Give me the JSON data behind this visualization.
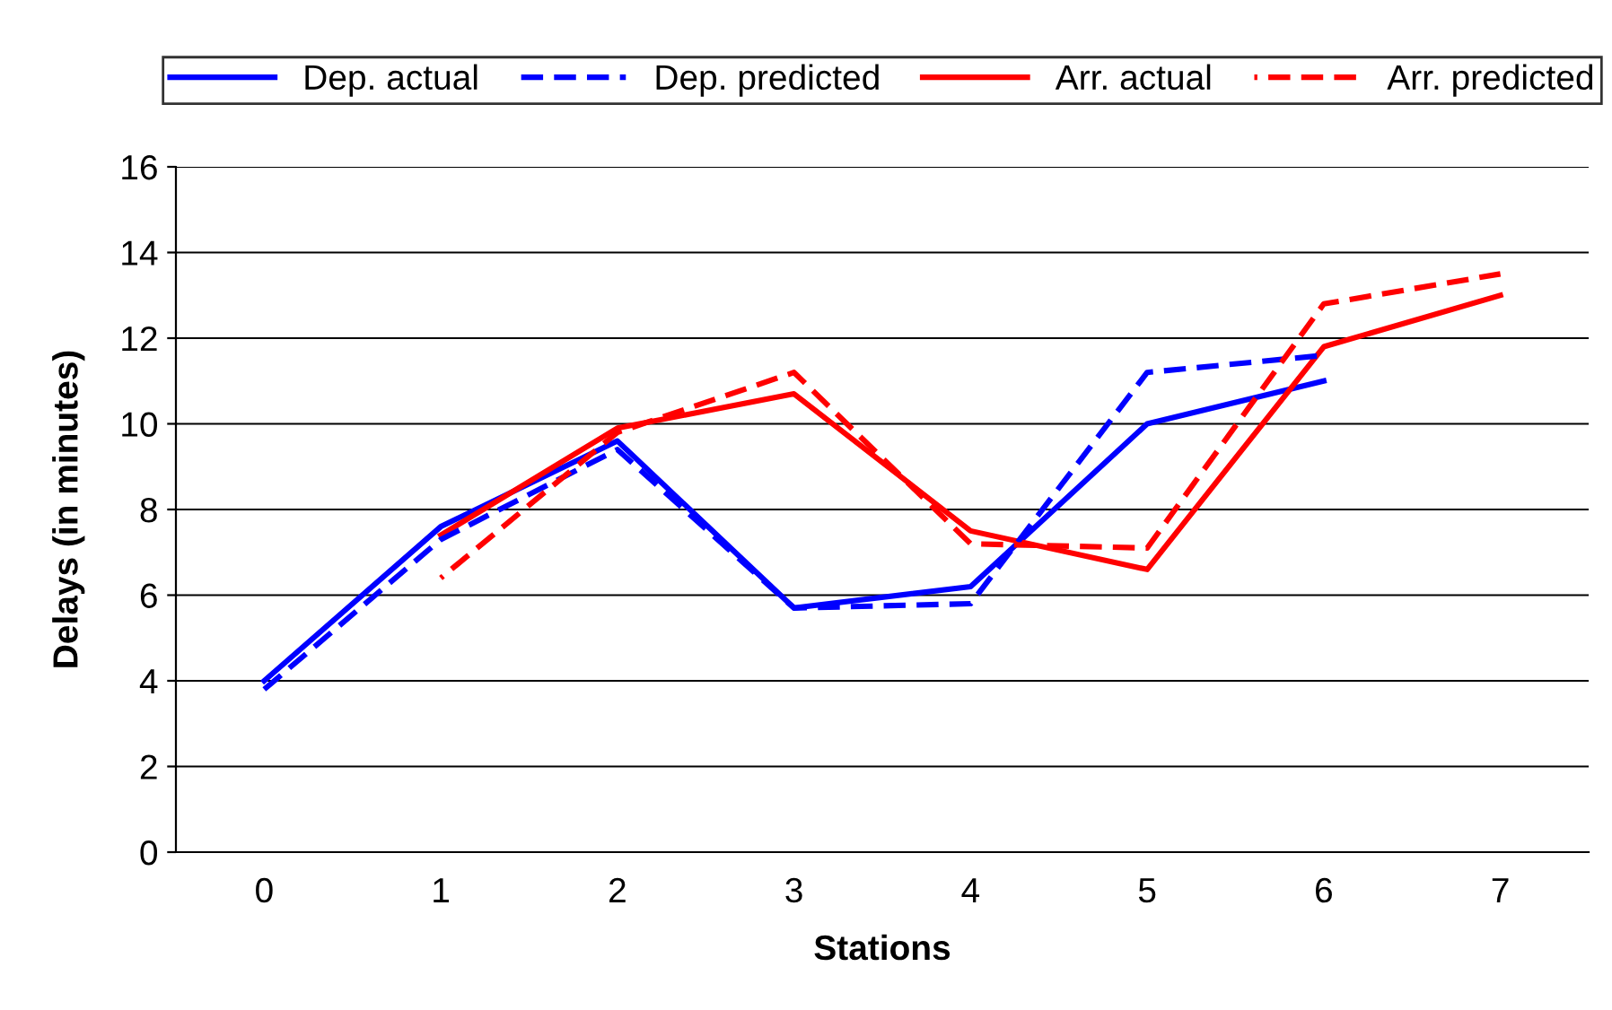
{
  "chart_data": {
    "type": "line",
    "xlabel": "Stations",
    "ylabel": "Delays (in minutes)",
    "categories": [
      "0",
      "1",
      "2",
      "3",
      "4",
      "5",
      "6",
      "7"
    ],
    "series": [
      {
        "name": "Dep. actual",
        "color": "#0000ff",
        "line_style": "solid",
        "values": [
          4.0,
          7.6,
          9.6,
          5.7,
          6.2,
          10.0,
          11.0,
          null
        ]
      },
      {
        "name": "Dep. predicted",
        "color": "#0000ff",
        "line_style": "dashed",
        "values": [
          3.8,
          7.3,
          9.4,
          5.7,
          5.8,
          11.2,
          11.6,
          null
        ]
      },
      {
        "name": "Arr. actual",
        "color": "#ff0000",
        "line_style": "solid",
        "values": [
          null,
          7.4,
          9.9,
          10.7,
          7.5,
          6.6,
          11.8,
          13.0
        ]
      },
      {
        "name": "Arr. predicted",
        "color": "#ff0000",
        "line_style": "dashed",
        "values": [
          null,
          6.4,
          9.8,
          11.2,
          7.2,
          7.1,
          12.8,
          13.5
        ]
      }
    ],
    "ylim": [
      0,
      16
    ],
    "yticks": [
      0,
      2,
      4,
      6,
      8,
      10,
      12,
      14,
      16
    ],
    "grid": "y",
    "legend": "top",
    "marker": "none"
  }
}
